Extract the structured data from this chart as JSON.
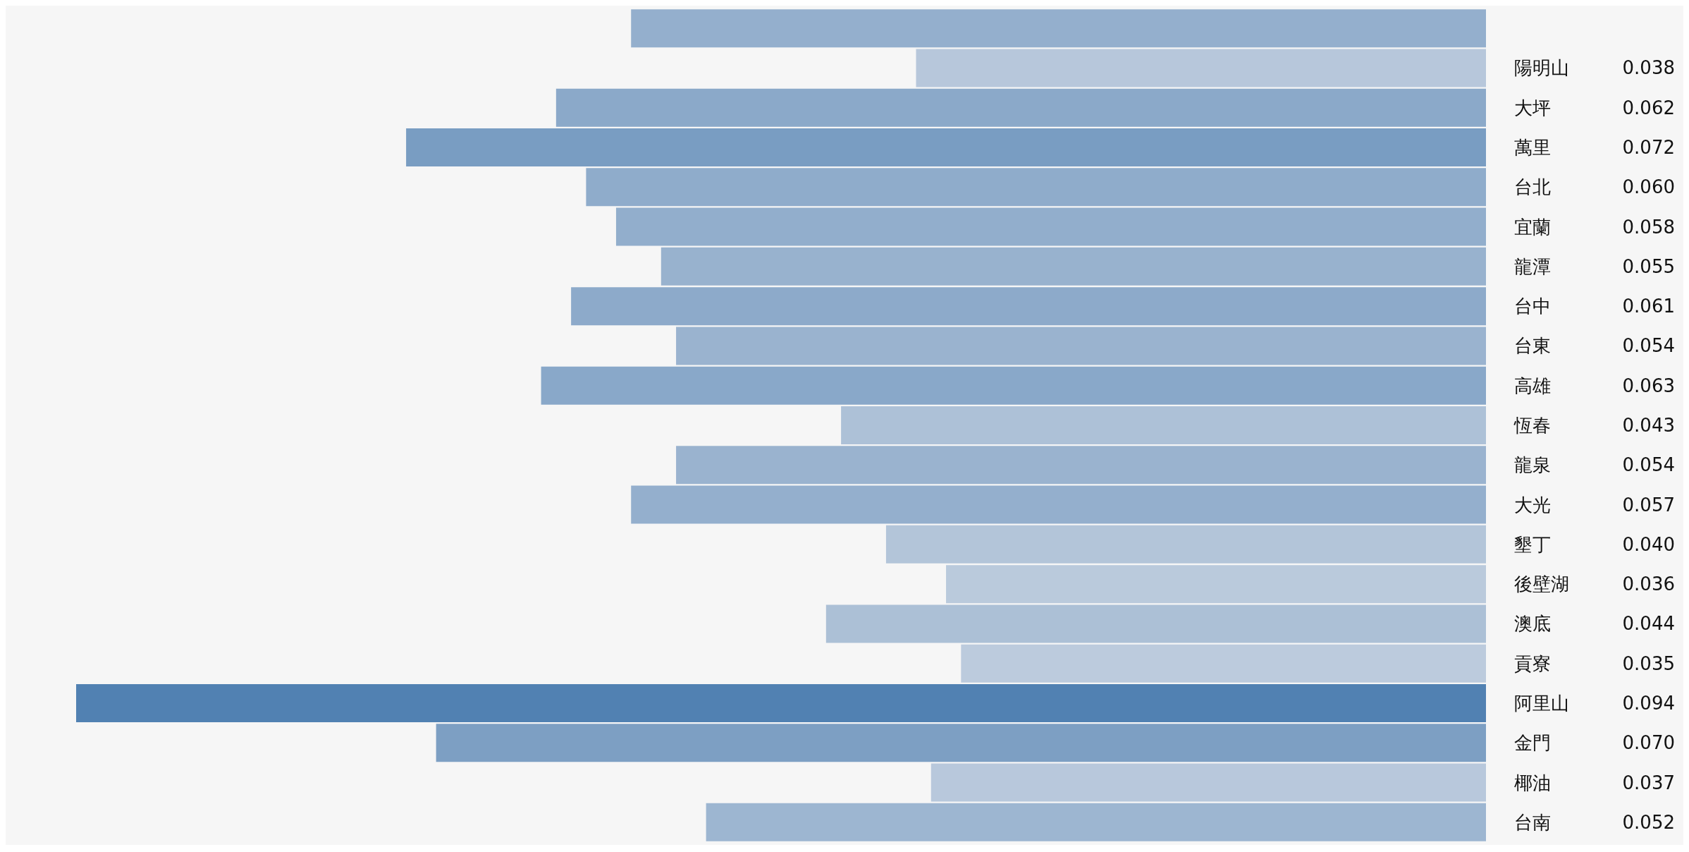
{
  "chart_data": {
    "type": "bar",
    "orientation": "horizontal",
    "categories": [
      null,
      "陽明山",
      "大坪",
      "萬里",
      "台北",
      "宜蘭",
      "龍潭",
      "台中",
      "台東",
      "高雄",
      "恆春",
      "龍泉",
      "大光",
      "墾丁",
      "後壁湖",
      "澳底",
      "貢寮",
      "阿里山",
      "金門",
      "椰油",
      "台南"
    ],
    "values": [
      0.057,
      0.038,
      0.062,
      0.072,
      0.06,
      0.058,
      0.055,
      0.061,
      0.054,
      0.063,
      0.043,
      0.054,
      0.057,
      0.04,
      0.036,
      0.044,
      0.035,
      0.094,
      0.07,
      0.037,
      0.052
    ],
    "value_labels": [
      null,
      "0.038",
      "0.062",
      "0.072",
      "0.060",
      "0.058",
      "0.055",
      "0.061",
      "0.054",
      "0.063",
      "0.043",
      "0.054",
      "0.057",
      "0.040",
      "0.036",
      "0.044",
      "0.035",
      "0.094",
      "0.070",
      "0.037",
      "0.052"
    ],
    "colors": [
      "#94afcd",
      "#b7c7db",
      "#8ba9c9",
      "#799dc2",
      "#8faccb",
      "#92aecc",
      "#98b2ce",
      "#8daaca",
      "#9ab3cf",
      "#89a8c9",
      "#adc1d7",
      "#9ab3cf",
      "#94afcd",
      "#b3c5d9",
      "#bacadc",
      "#acc0d6",
      "#bccbdd",
      "#5181b2",
      "#7d9fc3",
      "#b8c8dc",
      "#9db6d1"
    ]
  }
}
